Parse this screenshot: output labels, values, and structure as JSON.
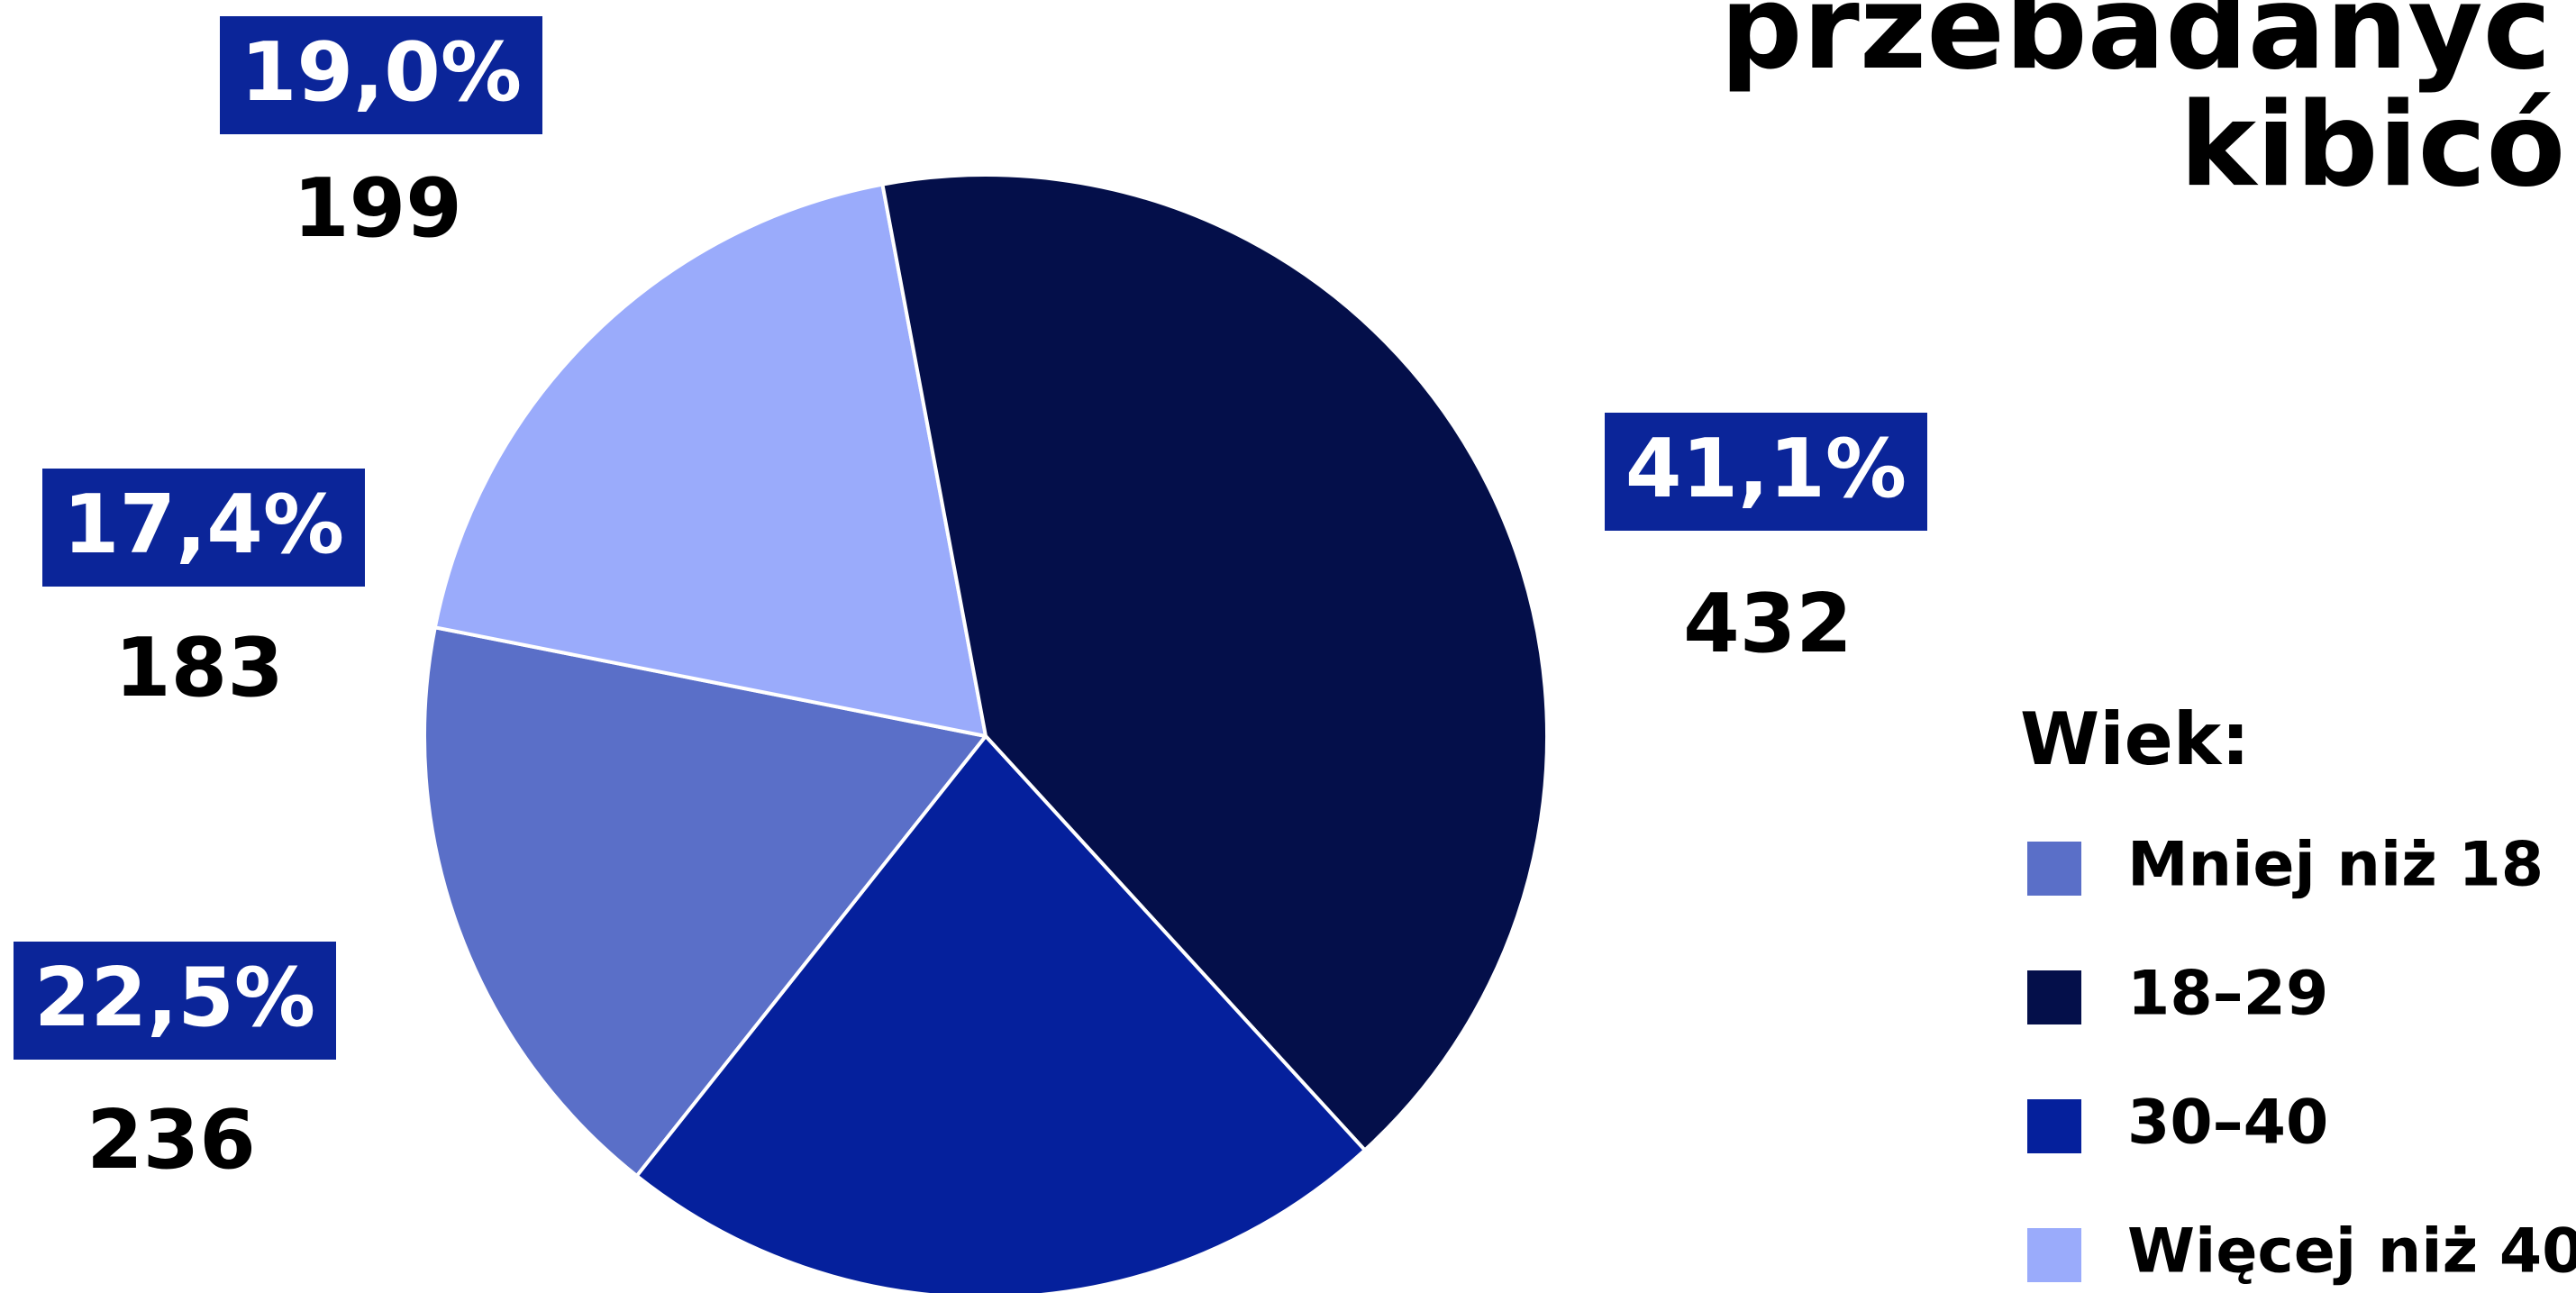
{
  "chart_data": {
    "type": "pie",
    "title_lines": [
      "przebadanyc",
      "kibicó"
    ],
    "legend_title": "Wiek:",
    "categories": [
      "Mniej niż 18",
      "18–29",
      "30–40",
      "Więcej niż 40"
    ],
    "values": [
      183,
      432,
      236,
      199
    ],
    "percents": [
      17.4,
      41.1,
      22.5,
      19.0
    ],
    "percent_labels": [
      "17,4%",
      "41,1%",
      "22,5%",
      "19,0%"
    ],
    "colors": [
      "#5a6fc8",
      "#040f4a",
      "#05209c",
      "#9aabfb"
    ],
    "label_box_color": "#0b2599"
  }
}
